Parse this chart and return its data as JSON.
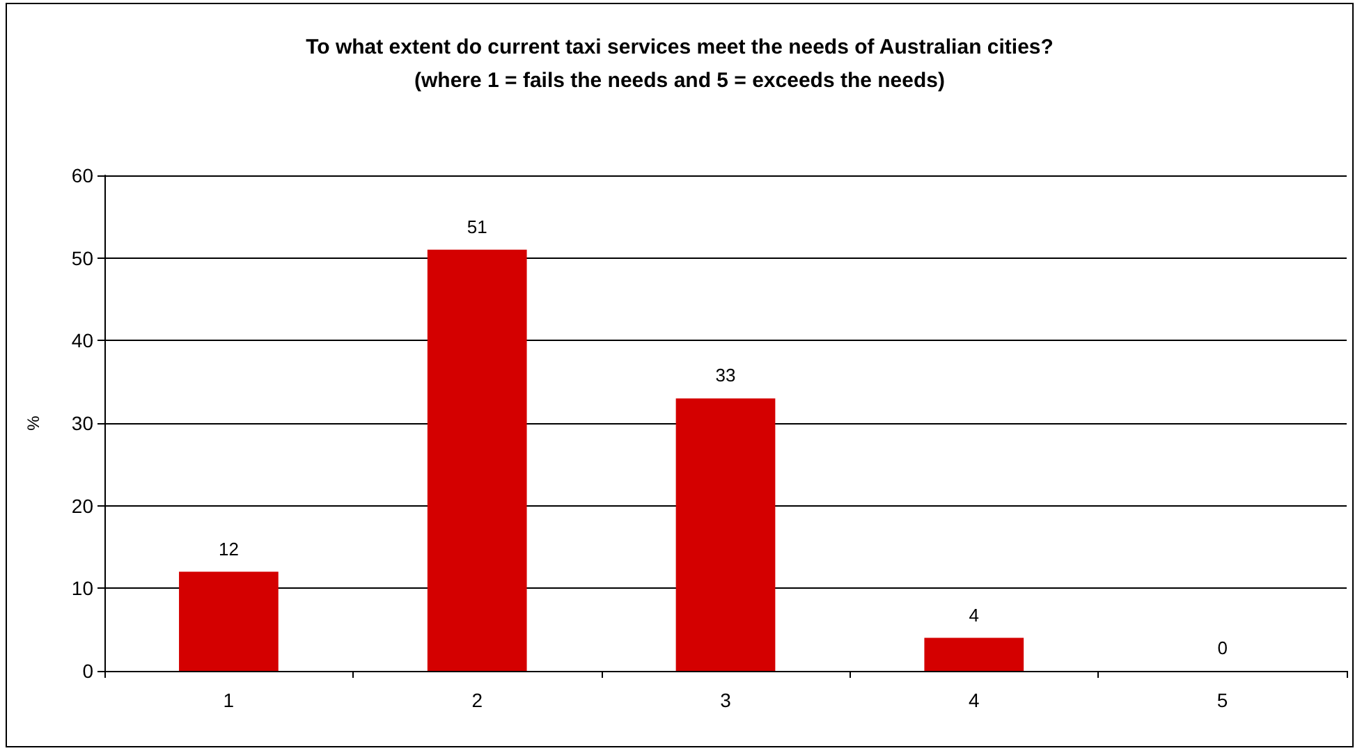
{
  "chart_data": {
    "type": "bar",
    "title": "To what extent do current taxi services meet the needs of Australian cities?\n(where 1 = fails the needs and 5 = exceeds the needs)",
    "ylabel": "%",
    "categories": [
      "1",
      "2",
      "3",
      "4",
      "5"
    ],
    "values": [
      12,
      51,
      33,
      4,
      0
    ],
    "color": "#d40000",
    "ylim": [
      0,
      60
    ],
    "yticks": [
      0,
      10,
      20,
      30,
      40,
      50,
      60
    ],
    "grid": "y",
    "data_labels": true
  }
}
